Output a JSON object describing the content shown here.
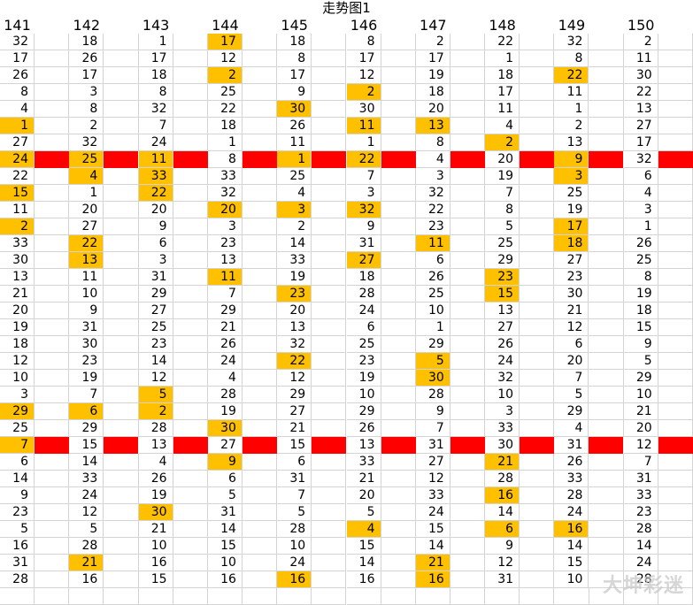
{
  "title": "走势图1",
  "headers": [
    "141",
    "142",
    "143",
    "144",
    "145",
    "146",
    "147",
    "148",
    "149",
    "150"
  ],
  "rows": [
    [
      "32",
      "18",
      "1",
      "17",
      "18",
      "8",
      "2",
      "22",
      "32",
      "2"
    ],
    [
      "17",
      "26",
      "17",
      "12",
      "8",
      "17",
      "17",
      "1",
      "8",
      "11"
    ],
    [
      "26",
      "17",
      "18",
      "2",
      "17",
      "12",
      "19",
      "18",
      "22",
      "30"
    ],
    [
      "8",
      "3",
      "8",
      "25",
      "9",
      "2",
      "18",
      "17",
      "11",
      "22"
    ],
    [
      "4",
      "8",
      "32",
      "22",
      "30",
      "30",
      "20",
      "11",
      "1",
      "13"
    ],
    [
      "1",
      "2",
      "7",
      "18",
      "26",
      "11",
      "13",
      "4",
      "2",
      "27"
    ],
    [
      "27",
      "32",
      "24",
      "1",
      "11",
      "1",
      "8",
      "2",
      "13",
      "17"
    ],
    [
      "24",
      "25",
      "11",
      "8",
      "1",
      "22",
      "4",
      "20",
      "9",
      "32"
    ],
    [
      "22",
      "4",
      "33",
      "33",
      "25",
      "7",
      "3",
      "19",
      "3",
      "6"
    ],
    [
      "15",
      "1",
      "22",
      "32",
      "4",
      "3",
      "32",
      "7",
      "25",
      "4"
    ],
    [
      "11",
      "20",
      "20",
      "20",
      "3",
      "32",
      "22",
      "8",
      "19",
      "3"
    ],
    [
      "2",
      "27",
      "9",
      "3",
      "2",
      "9",
      "23",
      "5",
      "17",
      "1"
    ],
    [
      "33",
      "22",
      "6",
      "23",
      "14",
      "31",
      "11",
      "25",
      "18",
      "26"
    ],
    [
      "30",
      "13",
      "3",
      "13",
      "33",
      "27",
      "6",
      "29",
      "27",
      "25"
    ],
    [
      "13",
      "11",
      "31",
      "11",
      "19",
      "18",
      "26",
      "23",
      "23",
      "8"
    ],
    [
      "21",
      "10",
      "29",
      "7",
      "23",
      "28",
      "25",
      "15",
      "30",
      "19"
    ],
    [
      "20",
      "9",
      "27",
      "29",
      "20",
      "24",
      "10",
      "13",
      "21",
      "18"
    ],
    [
      "19",
      "31",
      "25",
      "21",
      "13",
      "6",
      "1",
      "27",
      "12",
      "15"
    ],
    [
      "18",
      "30",
      "23",
      "26",
      "32",
      "25",
      "29",
      "26",
      "6",
      "9"
    ],
    [
      "12",
      "23",
      "14",
      "24",
      "22",
      "23",
      "5",
      "24",
      "20",
      "5"
    ],
    [
      "10",
      "19",
      "12",
      "4",
      "12",
      "19",
      "30",
      "32",
      "7",
      "29"
    ],
    [
      "3",
      "7",
      "5",
      "28",
      "29",
      "10",
      "28",
      "10",
      "5",
      "10"
    ],
    [
      "29",
      "6",
      "2",
      "19",
      "27",
      "29",
      "9",
      "3",
      "29",
      "21"
    ],
    [
      "25",
      "29",
      "28",
      "30",
      "21",
      "26",
      "7",
      "33",
      "4",
      "20"
    ],
    [
      "7",
      "15",
      "13",
      "27",
      "15",
      "13",
      "31",
      "30",
      "31",
      "12"
    ],
    [
      "6",
      "14",
      "4",
      "9",
      "6",
      "33",
      "27",
      "21",
      "26",
      "7"
    ],
    [
      "14",
      "33",
      "26",
      "6",
      "31",
      "21",
      "12",
      "28",
      "33",
      "31"
    ],
    [
      "9",
      "24",
      "19",
      "5",
      "7",
      "20",
      "33",
      "16",
      "28",
      "33"
    ],
    [
      "23",
      "12",
      "30",
      "31",
      "5",
      "5",
      "24",
      "14",
      "24",
      "23"
    ],
    [
      "5",
      "5",
      "21",
      "14",
      "28",
      "4",
      "15",
      "6",
      "16",
      "28"
    ],
    [
      "16",
      "28",
      "10",
      "15",
      "10",
      "15",
      "14",
      "9",
      "14",
      "14"
    ],
    [
      "31",
      "21",
      "16",
      "10",
      "24",
      "14",
      "21",
      "12",
      "15",
      "24"
    ],
    [
      "28",
      "16",
      "15",
      "16",
      "16",
      "16",
      "16",
      "31",
      "10",
      "28"
    ]
  ],
  "highlights": [
    [
      0,
      3
    ],
    [
      2,
      3
    ],
    [
      2,
      8
    ],
    [
      3,
      5
    ],
    [
      4,
      4
    ],
    [
      5,
      0
    ],
    [
      5,
      5
    ],
    [
      5,
      6
    ],
    [
      6,
      7
    ],
    [
      7,
      0
    ],
    [
      7,
      1
    ],
    [
      7,
      2
    ],
    [
      7,
      4
    ],
    [
      7,
      5
    ],
    [
      7,
      8
    ],
    [
      8,
      1
    ],
    [
      8,
      2
    ],
    [
      8,
      8
    ],
    [
      9,
      0
    ],
    [
      9,
      2
    ],
    [
      10,
      3
    ],
    [
      10,
      4
    ],
    [
      10,
      5
    ],
    [
      11,
      0
    ],
    [
      11,
      8
    ],
    [
      12,
      1
    ],
    [
      12,
      6
    ],
    [
      12,
      8
    ],
    [
      13,
      1
    ],
    [
      13,
      5
    ],
    [
      14,
      3
    ],
    [
      14,
      7
    ],
    [
      15,
      4
    ],
    [
      15,
      7
    ],
    [
      19,
      4
    ],
    [
      19,
      6
    ],
    [
      20,
      6
    ],
    [
      21,
      2
    ],
    [
      22,
      0
    ],
    [
      22,
      1
    ],
    [
      22,
      2
    ],
    [
      23,
      3
    ],
    [
      24,
      0
    ],
    [
      25,
      3
    ],
    [
      25,
      7
    ],
    [
      27,
      7
    ],
    [
      28,
      2
    ],
    [
      29,
      5
    ],
    [
      29,
      7
    ],
    [
      29,
      8
    ],
    [
      31,
      1
    ],
    [
      31,
      6
    ],
    [
      32,
      4
    ],
    [
      32,
      6
    ]
  ],
  "red_rows": [
    7,
    24
  ],
  "watermark": "大坤彩迷"
}
